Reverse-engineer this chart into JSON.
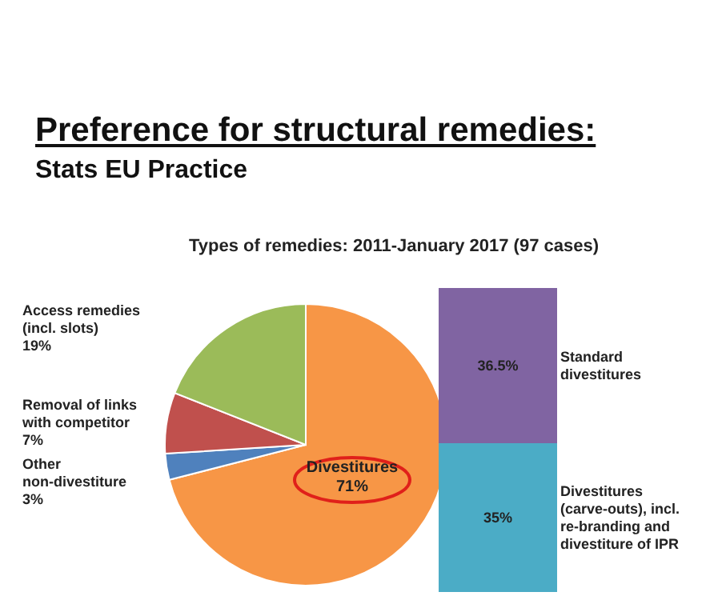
{
  "chart_data": [
    {
      "type": "pie",
      "title": "Preference for structural remedies:",
      "subtitle": "Stats EU Practice",
      "annotations": [
        "Types of remedies: 2011-January 2017 (97 cases)"
      ],
      "categories": [
        "Divestitures",
        "Other non-divestiture",
        "Removal of links with competitor",
        "Access remedies (incl. slots)"
      ],
      "values": [
        71,
        3,
        7,
        19
      ],
      "value_labels": [
        "71%",
        "3%",
        "7%",
        "19%"
      ],
      "colors": [
        "#f79646",
        "#4f81bd",
        "#c0504d",
        "#9bbb59"
      ]
    },
    {
      "type": "bar",
      "stacked": true,
      "tick_labels": false,
      "categories": [
        null
      ],
      "series": [
        {
          "name": "Divestitures (carve-outs), incl. re-branding and divestiture of IPR",
          "color": "#4bacc6",
          "values": [
            35
          ],
          "value_labels": [
            "35%"
          ]
        },
        {
          "name": "Standard divestitures",
          "color": "#8064a2",
          "values": [
            36.5
          ],
          "value_labels": [
            "36.5%"
          ]
        }
      ]
    }
  ]
}
